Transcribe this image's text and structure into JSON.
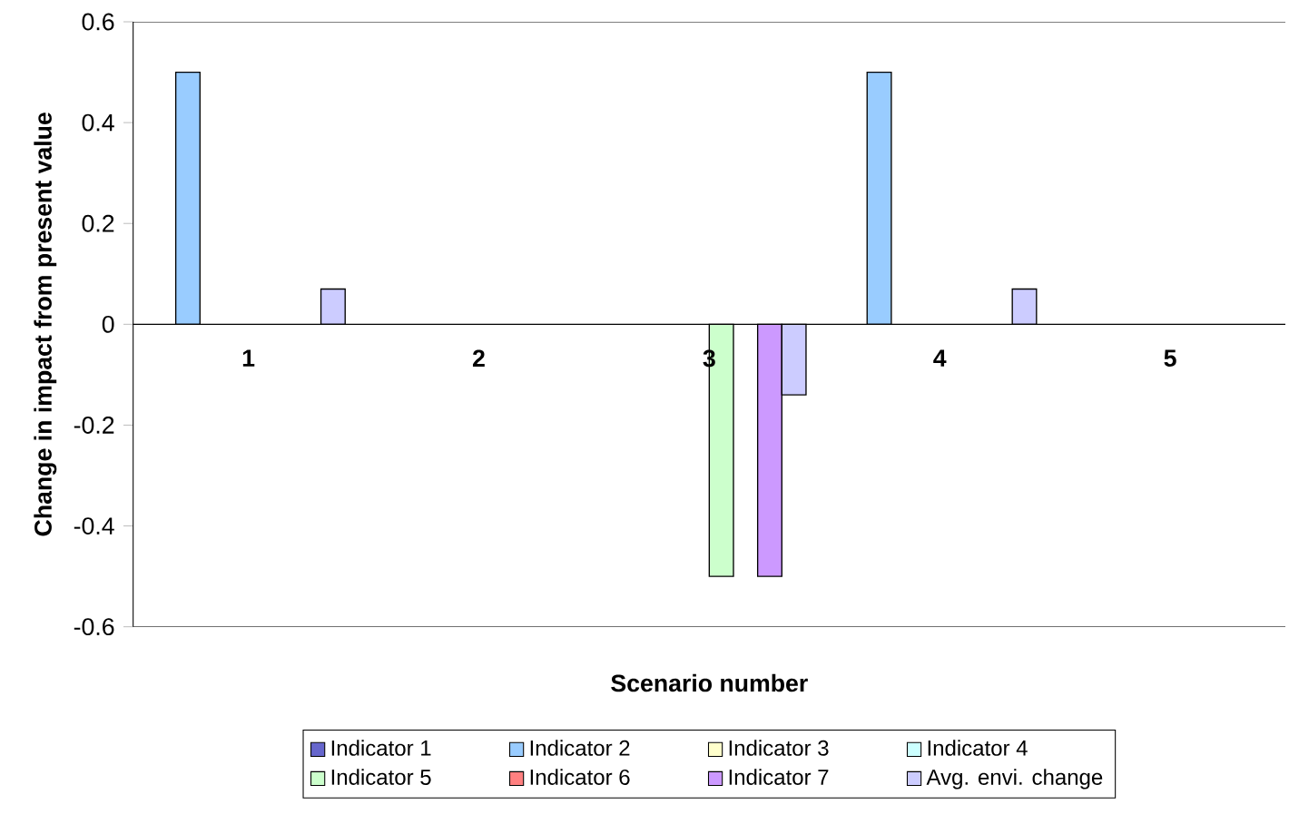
{
  "chart_data": {
    "type": "bar",
    "xlabel": "Scenario number",
    "ylabel": "Change in impact from present value",
    "categories": [
      "1",
      "2",
      "3",
      "4",
      "5"
    ],
    "ylim": [
      -0.6,
      0.6
    ],
    "yticks": [
      -0.6,
      -0.4,
      -0.2,
      0,
      0.2,
      0.4,
      0.6
    ],
    "legend": "bottom",
    "series": [
      {
        "name": "Indicator 1",
        "color": "#6666cc",
        "values": [
          0,
          0,
          0,
          0,
          0
        ]
      },
      {
        "name": "Indicator 2",
        "color": "#99ccff",
        "values": [
          0.5,
          0,
          0,
          0.5,
          0
        ]
      },
      {
        "name": "Indicator 3",
        "color": "#ffffcc",
        "values": [
          0,
          0,
          0,
          0,
          0
        ]
      },
      {
        "name": "Indicator 4",
        "color": "#ccffff",
        "values": [
          0,
          0,
          0,
          0,
          0
        ]
      },
      {
        "name": "Indicator 5",
        "color": "#ccffcc",
        "values": [
          0,
          0,
          -0.5,
          0,
          0
        ]
      },
      {
        "name": "Indicator 6",
        "color": "#ff8080",
        "values": [
          0,
          0,
          0,
          0,
          0
        ]
      },
      {
        "name": "Indicator 7",
        "color": "#cc99ff",
        "values": [
          0,
          0,
          -0.5,
          0,
          0
        ]
      },
      {
        "name": "Avg. envi. change",
        "color": "#ccccff",
        "values": [
          0.07,
          0,
          -0.14,
          0.07,
          0
        ]
      }
    ]
  }
}
